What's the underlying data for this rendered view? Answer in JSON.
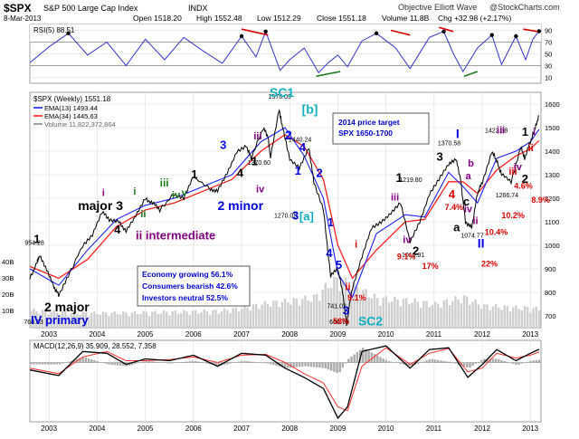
{
  "header": {
    "symbol": "$SPX",
    "name": "S&P 500 Large Cap Index",
    "exchange": "INDX",
    "date": "8-Mar-2013",
    "open": "Open 1518.20",
    "high": "High 1552.48",
    "low": "Low 1512.29",
    "close": "Close 1551.18",
    "volume": "Volume 11.8B",
    "change": "Chg +32.98 (+2.17%)",
    "source": "Objective Elliott Wave",
    "watermark": "@StockCharts.com"
  },
  "colors": {
    "price": "#000000",
    "ema13": "#2020ff",
    "ema34": "#ff2020",
    "rsi": "#3535cc",
    "macd": "#000000",
    "signal": "#ff3030",
    "hist": "#aaaaaa",
    "volume": "#cfcfcf",
    "panel_bg": "#ffffff",
    "grid": "#dddddd",
    "wave_black": "#000000",
    "wave_green": "#1f7a1f",
    "wave_purple": "#800080",
    "wave_blue": "#0000dd",
    "wave_cyan": "#10b0c0",
    "wave_red": "#dd0000"
  },
  "chart_data": [
    {
      "type": "line",
      "panel": "RSI",
      "title": "RSI(5) 88.51",
      "ylim": [
        0,
        100
      ],
      "yticks": [
        10,
        30,
        50,
        70,
        90
      ],
      "ref_lines": [
        30,
        70
      ],
      "series": [
        {
          "name": "RSI(5)",
          "x": [
            2002.6,
            2003.0,
            2003.4,
            2003.8,
            2004.2,
            2004.6,
            2005.0,
            2005.4,
            2005.8,
            2006.2,
            2006.6,
            2007.0,
            2007.3,
            2007.5,
            2007.8,
            2008.0,
            2008.3,
            2008.6,
            2008.8,
            2009.0,
            2009.2,
            2009.5,
            2009.8,
            2010.2,
            2010.5,
            2010.9,
            2011.2,
            2011.4,
            2011.6,
            2011.9,
            2012.2,
            2012.4,
            2012.7,
            2012.9,
            2013.05,
            2013.18
          ],
          "values": [
            35,
            62,
            85,
            48,
            70,
            30,
            75,
            40,
            78,
            55,
            34,
            80,
            45,
            88,
            22,
            40,
            60,
            18,
            35,
            48,
            28,
            72,
            85,
            60,
            25,
            78,
            88,
            50,
            20,
            60,
            82,
            32,
            80,
            40,
            75,
            88.51
          ]
        }
      ]
    },
    {
      "type": "line",
      "panel": "Price",
      "title": "$SPX (Weekly) 1551.18",
      "xlim": [
        2002.6,
        2013.22
      ],
      "ylim": [
        650,
        1650
      ],
      "yticks": [
        700,
        800,
        900,
        1000,
        1100,
        1200,
        1300,
        1400,
        1500,
        1600
      ],
      "xticks": [
        "2003",
        "2004",
        "2005",
        "2006",
        "2007",
        "2008",
        "2009",
        "2010",
        "2011",
        "2012",
        "2013"
      ],
      "legend": [
        "EMA(13) 1493.44",
        "EMA(34) 1445.63",
        "Volume 11,822,372,864"
      ],
      "series": [
        {
          "name": "$SPX (Weekly)",
          "x": [
            2002.6,
            2002.75,
            2002.8,
            2002.95,
            2003.1,
            2003.2,
            2003.4,
            2003.7,
            2003.9,
            2004.1,
            2004.25,
            2004.45,
            2004.6,
            2004.8,
            2005.0,
            2005.15,
            2005.3,
            2005.6,
            2005.8,
            2006.0,
            2006.35,
            2006.5,
            2006.7,
            2006.9,
            2007.1,
            2007.2,
            2007.45,
            2007.55,
            2007.6,
            2007.78,
            2007.85,
            2008.0,
            2008.2,
            2008.4,
            2008.5,
            2008.7,
            2008.85,
            2009.0,
            2009.1,
            2009.18,
            2009.3,
            2009.5,
            2009.7,
            2009.9,
            2010.1,
            2010.3,
            2010.5,
            2010.7,
            2010.9,
            2011.1,
            2011.3,
            2011.45,
            2011.55,
            2011.65,
            2011.78,
            2011.9,
            2012.0,
            2012.2,
            2012.3,
            2012.4,
            2012.6,
            2012.8,
            2012.88,
            2013.0,
            2013.1,
            2013.18
          ],
          "values": [
            860,
            930,
            954,
            900,
            820,
            790,
            870,
            1000,
            1040,
            1140,
            1110,
            1100,
            1062,
            1130,
            1200,
            1180,
            1150,
            1220,
            1200,
            1290,
            1240,
            1230,
            1310,
            1400,
            1420,
            1370,
            1500,
            1460,
            1370,
            1576,
            1500,
            1370,
            1330,
            1410,
            1270,
            1150,
            870,
            900,
            800,
            666,
            820,
            950,
            1070,
            1100,
            1140,
            1180,
            1011,
            1100,
            1220,
            1280,
            1340,
            1370,
            1280,
            1100,
            1075,
            1220,
            1270,
            1400,
            1360,
            1300,
            1267,
            1420,
            1370,
            1440,
            1500,
            1551
          ]
        },
        {
          "name": "EMA(13)",
          "x": [
            2002.6,
            2003.2,
            2003.8,
            2004.4,
            2005.0,
            2005.6,
            2006.2,
            2006.8,
            2007.4,
            2007.9,
            2008.3,
            2008.7,
            2009.0,
            2009.3,
            2009.8,
            2010.4,
            2010.8,
            2011.3,
            2011.6,
            2011.9,
            2012.3,
            2012.7,
            2013.0,
            2013.18
          ],
          "values": [
            900,
            830,
            980,
            1110,
            1170,
            1200,
            1250,
            1300,
            1440,
            1500,
            1380,
            1200,
            880,
            780,
            1050,
            1130,
            1120,
            1310,
            1250,
            1180,
            1370,
            1400,
            1440,
            1493
          ]
        },
        {
          "name": "EMA(34)",
          "x": [
            2002.6,
            2003.2,
            2003.8,
            2004.4,
            2005.0,
            2005.6,
            2006.2,
            2006.8,
            2007.4,
            2007.9,
            2008.3,
            2008.7,
            2009.0,
            2009.3,
            2009.8,
            2010.4,
            2010.8,
            2011.3,
            2011.6,
            2011.9,
            2012.3,
            2012.7,
            2013.0,
            2013.18
          ],
          "values": [
            910,
            860,
            940,
            1080,
            1150,
            1180,
            1230,
            1280,
            1400,
            1470,
            1420,
            1280,
            1000,
            860,
            980,
            1100,
            1110,
            1270,
            1270,
            1220,
            1320,
            1380,
            1410,
            1445
          ]
        },
        {
          "name": "Volume",
          "x": [
            2002.6,
            2003.5,
            2004.5,
            2005.5,
            2006.5,
            2007.0,
            2007.5,
            2008.0,
            2008.5,
            2008.8,
            2009.0,
            2009.3,
            2009.8,
            2010.5,
            2011.0,
            2011.6,
            2012.0,
            2012.5,
            2013.0,
            2013.18
          ],
          "values": [
            0.35,
            0.3,
            0.3,
            0.32,
            0.34,
            0.4,
            0.5,
            0.55,
            0.62,
            0.9,
            1.0,
            0.85,
            0.6,
            0.55,
            0.48,
            0.62,
            0.45,
            0.42,
            0.4,
            0.38
          ]
        }
      ],
      "price_labels": [
        "954.28",
        "768.63",
        "1576.09",
        "1440.24",
        "1370.60",
        "1270.05",
        "741.02",
        "666.79",
        "1219.80",
        "1010.91",
        "1370.58",
        "1074.77",
        "1422.38",
        "1266.74"
      ],
      "volume_axis_labels": [
        "40B",
        "30B",
        "20B",
        "10B"
      ],
      "wave_labels": [
        {
          "text": "1",
          "color": "black"
        },
        {
          "text": "2 major",
          "color": "black"
        },
        {
          "text": "IV primary",
          "color": "blue"
        },
        {
          "text": "major 3",
          "color": "black"
        },
        {
          "text": "4",
          "color": "black"
        },
        {
          "text": "i",
          "color": "purple"
        },
        {
          "text": "ii intermediate",
          "color": "purple"
        },
        {
          "text": "i",
          "color": "green"
        },
        {
          "text": "ii",
          "color": "green"
        },
        {
          "text": "iii",
          "color": "green"
        },
        {
          "text": "iv",
          "color": "green"
        },
        {
          "text": "v",
          "color": "green"
        },
        {
          "text": "1",
          "color": "black"
        },
        {
          "text": "2 minor",
          "color": "blue"
        },
        {
          "text": "3",
          "color": "blue"
        },
        {
          "text": "4",
          "color": "black"
        },
        {
          "text": "iii",
          "color": "purple"
        },
        {
          "text": "iv",
          "color": "purple"
        },
        {
          "text": "1",
          "color": "black"
        },
        {
          "text": "SC1",
          "color": "cyan"
        },
        {
          "text": "2",
          "color": "blue"
        },
        {
          "text": "[b]",
          "color": "cyan"
        },
        {
          "text": "1",
          "color": "blue"
        },
        {
          "text": "3",
          "color": "blue"
        },
        {
          "text": "[a]",
          "color": "cyan"
        },
        {
          "text": "4",
          "color": "blue"
        },
        {
          "text": "2",
          "color": "blue"
        },
        {
          "text": "1",
          "color": "blue"
        },
        {
          "text": "4",
          "color": "blue"
        },
        {
          "text": "5",
          "color": "blue"
        },
        {
          "text": "3",
          "color": "blue"
        },
        {
          "text": "SC2",
          "color": "cyan"
        },
        {
          "text": "58%",
          "color": "red"
        },
        {
          "text": "i",
          "color": "red"
        },
        {
          "text": "ii",
          "color": "red"
        },
        {
          "text": "9.1%",
          "color": "red"
        },
        {
          "text": "1",
          "color": "black"
        },
        {
          "text": "iii",
          "color": "purple"
        },
        {
          "text": "iv",
          "color": "purple"
        },
        {
          "text": "2",
          "color": "black"
        },
        {
          "text": "9.1%",
          "color": "red"
        },
        {
          "text": "17%",
          "color": "red"
        },
        {
          "text": "I",
          "color": "blue"
        },
        {
          "text": "3",
          "color": "black"
        },
        {
          "text": "4",
          "color": "red"
        },
        {
          "text": "7.4%",
          "color": "red"
        },
        {
          "text": "a",
          "color": "purple"
        },
        {
          "text": "b",
          "color": "purple"
        },
        {
          "text": "iv",
          "color": "purple"
        },
        {
          "text": "ii",
          "color": "purple"
        },
        {
          "text": "a",
          "color": "black"
        },
        {
          "text": "c",
          "color": "black"
        },
        {
          "text": "II",
          "color": "blue"
        },
        {
          "text": "22%",
          "color": "red"
        },
        {
          "text": "10.4%",
          "color": "red"
        },
        {
          "text": "10.2%",
          "color": "red"
        },
        {
          "text": "iii",
          "color": "purple"
        },
        {
          "text": "1",
          "color": "black"
        },
        {
          "text": "iv",
          "color": "purple"
        },
        {
          "text": "4.6%",
          "color": "red"
        },
        {
          "text": "2",
          "color": "black"
        },
        {
          "text": "8.9%",
          "color": "red"
        },
        {
          "text": "i",
          "color": "purple"
        },
        {
          "text": "ii",
          "color": "red"
        },
        {
          "text": "iii",
          "color": "red"
        }
      ],
      "notes": [
        {
          "lines": [
            "2014 price target",
            "SPX 1650-1700"
          ],
          "color": "#0000cc"
        },
        {
          "lines": [
            "Economy growing 56.1%",
            "Consumers bearish 42.6%",
            "Investors neutral 52.5%"
          ],
          "color": "#0000dd"
        }
      ]
    },
    {
      "type": "line",
      "panel": "MACD",
      "title": "MACD(12,26,9) 35.909, 28.552, 7.358",
      "ylim": [
        -160,
        60
      ],
      "series": [
        {
          "name": "MACD",
          "x": [
            2002.6,
            2003.2,
            2003.7,
            2004.2,
            2004.6,
            2005.0,
            2005.5,
            2006.0,
            2006.5,
            2007.0,
            2007.5,
            2007.9,
            2008.3,
            2008.7,
            2009.0,
            2009.2,
            2009.5,
            2010.0,
            2010.5,
            2010.9,
            2011.3,
            2011.7,
            2012.0,
            2012.3,
            2012.7,
            2013.0,
            2013.18
          ],
          "values": [
            -20,
            -35,
            30,
            25,
            -5,
            10,
            5,
            20,
            -10,
            25,
            20,
            -15,
            -40,
            -70,
            -150,
            -120,
            30,
            45,
            -15,
            35,
            40,
            -40,
            -5,
            35,
            5,
            25,
            35.909
          ]
        },
        {
          "name": "Signal",
          "x": [
            2002.6,
            2003.2,
            2003.7,
            2004.2,
            2004.6,
            2005.0,
            2005.5,
            2006.0,
            2006.5,
            2007.0,
            2007.5,
            2007.9,
            2008.3,
            2008.7,
            2009.0,
            2009.2,
            2009.5,
            2010.0,
            2010.5,
            2010.9,
            2011.3,
            2011.7,
            2012.0,
            2012.3,
            2012.7,
            2013.0,
            2013.18
          ],
          "values": [
            -15,
            -30,
            15,
            30,
            5,
            5,
            8,
            15,
            0,
            20,
            22,
            0,
            -30,
            -55,
            -120,
            -130,
            -10,
            40,
            -5,
            25,
            38,
            -25,
            -15,
            25,
            12,
            20,
            28.552
          ]
        }
      ],
      "histogram_label": "7.358"
    }
  ]
}
